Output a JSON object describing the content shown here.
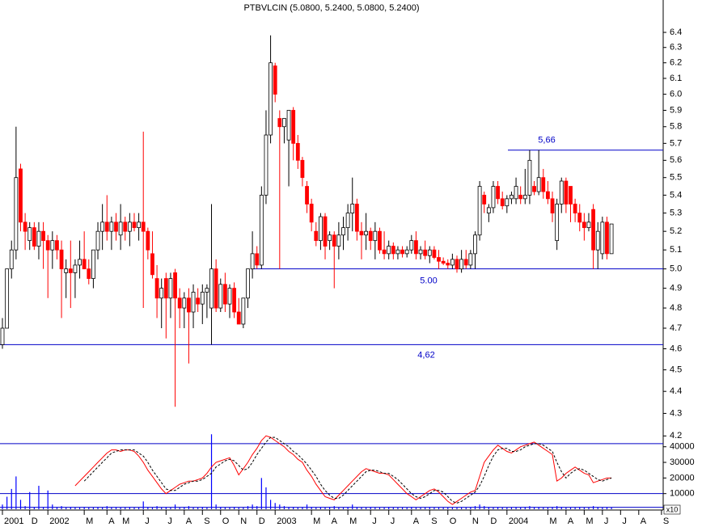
{
  "chart_data": [
    {
      "type": "candlestick",
      "title": "PTBVLCIN (5.0800, 5.2400, 5.0800, 5.2400)",
      "categories": [
        "2001",
        null,
        null,
        null,
        null,
        null,
        "D",
        null,
        null,
        null,
        "2002",
        null,
        null,
        null,
        null,
        null,
        null,
        null,
        "M",
        null,
        null,
        null,
        null,
        "A",
        null,
        null,
        "M",
        null,
        null,
        null,
        null,
        "J",
        null,
        null,
        null,
        null,
        "J",
        null,
        null,
        null,
        "A",
        null,
        null,
        null,
        "S",
        null,
        null,
        null,
        "O",
        null,
        null,
        null,
        "N",
        null,
        null,
        null,
        "D",
        null,
        null,
        null,
        "2003",
        null,
        null,
        null,
        null,
        null,
        null,
        null,
        "M",
        null,
        null,
        null,
        "A",
        null,
        null,
        null,
        "M",
        null,
        null,
        null,
        null,
        "J",
        null,
        null,
        null,
        "J",
        null,
        null,
        null,
        null,
        "A",
        null,
        null,
        null,
        "S",
        null,
        null,
        null,
        "O",
        null,
        null,
        null,
        null,
        "N",
        null,
        null,
        null,
        "D",
        null,
        null,
        null,
        "2004",
        null,
        null,
        null,
        null,
        null,
        null,
        null,
        null,
        "M",
        null,
        null,
        null,
        "A",
        null,
        null,
        null,
        "M",
        null,
        null,
        null,
        "J",
        null,
        null,
        null,
        "J",
        null,
        null,
        null,
        "A",
        null,
        null,
        null,
        null,
        "S"
      ],
      "open": [
        4.62,
        4.7,
        5.0,
        5.1,
        5.55,
        5.25,
        5.15,
        5.22,
        5.12,
        5.2,
        5.15,
        5.1,
        5.15,
        5.1,
        4.98,
        5.0,
        4.98,
        5.02,
        5.05,
        5.0,
        4.95,
        5.1,
        5.2,
        5.25,
        5.2,
        5.25,
        5.18,
        5.25,
        5.2,
        5.25,
        5.22,
        5.25,
        5.2,
        5.08,
        4.95,
        4.85,
        4.95,
        4.85,
        4.98,
        4.85,
        4.8,
        4.85,
        4.78,
        4.85,
        4.82,
        4.88,
        4.8,
        5.0,
        4.8,
        4.92,
        4.82,
        4.9,
        4.78,
        4.72,
        4.85,
        5.0,
        5.08,
        5.02,
        5.4,
        5.75,
        6.18,
        5.85,
        5.8,
        5.72,
        5.9,
        5.7,
        5.6,
        5.45,
        5.35,
        5.2,
        5.15,
        5.28,
        5.15,
        5.18,
        5.12,
        5.18,
        5.22,
        5.3,
        5.35,
        5.2,
        5.18,
        5.2,
        5.15,
        5.2,
        5.1,
        5.08,
        5.12,
        5.08,
        5.1,
        5.08,
        5.1,
        5.15,
        5.08,
        5.1,
        5.07,
        5.1,
        5.06,
        5.04,
        5.03,
        5.02,
        5.05,
        5.0,
        5.05,
        5.02,
        5.08,
        5.18,
        5.4,
        5.3,
        5.33,
        5.45,
        5.38,
        5.34,
        5.38,
        5.38,
        5.4,
        5.38,
        5.4,
        5.45,
        5.42,
        5.5,
        5.42,
        5.38,
        5.15,
        5.35,
        5.48,
        5.45,
        5.35,
        5.3,
        5.25,
        5.22,
        5.32,
        5.1,
        5.08,
        5.25,
        5.08,
        null,
        null,
        null,
        null,
        null,
        null,
        null,
        null,
        null,
        null,
        null
      ],
      "high": [
        4.75,
        5.0,
        5.15,
        5.8,
        5.58,
        5.3,
        5.25,
        5.25,
        5.25,
        5.25,
        5.18,
        5.2,
        5.18,
        5.15,
        5.05,
        5.15,
        5.05,
        5.15,
        5.2,
        5.05,
        5.1,
        5.25,
        5.35,
        5.4,
        5.28,
        5.3,
        5.35,
        5.28,
        5.3,
        5.3,
        5.3,
        5.77,
        5.22,
        5.2,
        5.02,
        4.95,
        4.98,
        4.98,
        5.0,
        4.9,
        4.88,
        4.9,
        4.92,
        4.9,
        4.92,
        4.92,
        5.35,
        5.05,
        4.95,
        4.98,
        4.92,
        4.93,
        4.85,
        4.85,
        5.0,
        5.2,
        5.12,
        5.45,
        5.9,
        6.38,
        6.2,
        5.9,
        5.85,
        5.9,
        5.92,
        5.75,
        5.62,
        5.48,
        5.38,
        5.25,
        5.3,
        5.3,
        5.2,
        5.2,
        5.25,
        5.28,
        5.35,
        5.5,
        5.38,
        5.25,
        5.3,
        5.22,
        5.25,
        5.22,
        5.2,
        5.15,
        5.14,
        5.12,
        5.12,
        5.12,
        5.18,
        5.2,
        5.12,
        5.15,
        5.12,
        5.12,
        5.1,
        5.06,
        5.05,
        5.08,
        5.07,
        5.1,
        5.1,
        5.1,
        5.2,
        5.48,
        5.42,
        5.35,
        5.48,
        5.48,
        5.42,
        5.4,
        5.42,
        5.5,
        5.45,
        5.55,
        5.66,
        5.48,
        5.66,
        5.55,
        5.48,
        5.42,
        5.38,
        5.5,
        5.5,
        5.45,
        5.38,
        5.35,
        5.3,
        5.3,
        5.35,
        5.25,
        5.28,
        5.28,
        5.24,
        null,
        null,
        null,
        null,
        null,
        null,
        null,
        null,
        null,
        null,
        null
      ],
      "low": [
        4.6,
        4.7,
        4.95,
        5.05,
        5.2,
        5.1,
        5.1,
        5.1,
        5.05,
        5.0,
        4.85,
        5.0,
        5.05,
        4.75,
        4.85,
        4.8,
        4.85,
        4.95,
        5.0,
        4.92,
        4.9,
        5.05,
        5.1,
        5.15,
        5.1,
        5.15,
        5.1,
        5.15,
        5.12,
        5.2,
        5.15,
        4.8,
        5.05,
        4.95,
        4.75,
        4.7,
        4.65,
        4.75,
        4.33,
        4.7,
        4.7,
        4.53,
        4.7,
        4.78,
        4.72,
        4.75,
        4.62,
        4.78,
        4.78,
        4.78,
        4.75,
        4.75,
        4.72,
        4.7,
        4.8,
        4.95,
        5.0,
        5.0,
        5.35,
        5.7,
        5.95,
        5.0,
        5.7,
        5.45,
        5.6,
        5.55,
        5.45,
        5.3,
        5.2,
        5.12,
        5.1,
        5.05,
        5.1,
        4.9,
        5.05,
        5.1,
        5.15,
        5.2,
        5.15,
        5.05,
        5.1,
        5.1,
        5.05,
        5.08,
        5.05,
        5.05,
        5.05,
        5.05,
        5.06,
        5.06,
        5.08,
        5.05,
        5.05,
        5.05,
        5.03,
        5.05,
        5.0,
        5.02,
        5.0,
        5.0,
        4.98,
        4.98,
        5.0,
        5.0,
        5.0,
        5.15,
        5.3,
        5.25,
        5.3,
        5.35,
        5.32,
        5.3,
        5.35,
        5.35,
        5.35,
        5.35,
        5.35,
        5.4,
        5.4,
        5.38,
        5.35,
        5.25,
        5.1,
        5.3,
        5.3,
        5.25,
        5.25,
        5.2,
        5.15,
        5.2,
        5.0,
        5.0,
        5.05,
        5.05,
        5.08,
        null,
        null,
        null,
        null,
        null,
        null,
        null,
        null,
        null,
        null,
        null
      ],
      "close": [
        4.7,
        5.0,
        5.1,
        5.5,
        5.25,
        5.2,
        5.22,
        5.12,
        5.2,
        5.15,
        5.1,
        5.15,
        5.1,
        5.0,
        5.0,
        4.98,
        5.02,
        5.05,
        5.0,
        4.95,
        5.1,
        5.2,
        5.25,
        5.2,
        5.25,
        5.2,
        5.25,
        5.2,
        5.25,
        5.22,
        5.25,
        5.2,
        5.1,
        4.97,
        4.85,
        4.9,
        4.85,
        4.95,
        4.85,
        4.8,
        4.85,
        4.78,
        4.88,
        4.82,
        4.88,
        4.9,
        5.0,
        4.8,
        4.92,
        4.82,
        4.9,
        4.78,
        4.72,
        4.85,
        5.0,
        5.08,
        5.02,
        5.4,
        5.75,
        6.2,
        6.0,
        5.8,
        5.85,
        5.9,
        5.7,
        5.6,
        5.5,
        5.35,
        5.25,
        5.15,
        5.28,
        5.12,
        5.18,
        5.12,
        5.18,
        5.22,
        5.3,
        5.35,
        5.2,
        5.18,
        5.2,
        5.15,
        5.2,
        5.1,
        5.08,
        5.12,
        5.08,
        5.1,
        5.08,
        5.1,
        5.15,
        5.08,
        5.1,
        5.07,
        5.1,
        5.06,
        5.04,
        5.03,
        5.02,
        5.05,
        5.0,
        5.05,
        5.02,
        5.08,
        5.18,
        5.45,
        5.35,
        5.33,
        5.45,
        5.38,
        5.34,
        5.38,
        5.4,
        5.45,
        5.38,
        5.4,
        5.6,
        5.42,
        5.5,
        5.42,
        5.38,
        5.3,
        5.35,
        5.48,
        5.35,
        5.35,
        5.3,
        5.25,
        5.22,
        5.25,
        5.1,
        5.2,
        5.25,
        5.08,
        5.24,
        null,
        null,
        null,
        null,
        null,
        null,
        null,
        null,
        null,
        null,
        null
      ],
      "up_color": "#ffffff",
      "down_color": "#ff0000",
      "outline_color": "#000000",
      "log_scale": true,
      "ylim": [
        4.18,
        6.62
      ],
      "yticks": [
        4.2,
        4.3,
        4.4,
        4.5,
        4.6,
        4.7,
        4.8,
        4.9,
        {
          "value": 5,
          "label": "5.0"
        },
        5.1,
        5.2,
        5.3,
        5.4,
        5.5,
        5.6,
        5.7,
        5.8,
        5.9,
        {
          "value": 6,
          "label": "6.0"
        },
        6.1,
        6.2,
        6.3,
        6.4
      ],
      "hline_color": "#0000c8",
      "hlines": [
        {
          "value": 5.66,
          "label": "5,66"
        },
        {
          "value": 5.0,
          "label": "5.00"
        },
        {
          "value": 4.62,
          "label": "4,62"
        }
      ]
    },
    {
      "type": "combo",
      "ylim": [
        0,
        44000
      ],
      "yticks": [
        10000,
        20000,
        30000,
        40000
      ],
      "axis_note": "x10",
      "hline_color": "#0000c8",
      "hlines": [
        42000,
        10000,
        1200
      ],
      "series": [
        {
          "style": "bar",
          "color": "#0000ff",
          "values": [
            3000,
            8000,
            13000,
            21000,
            6000,
            2000,
            11000,
            1500,
            15000,
            1500,
            12000,
            3000,
            1500,
            2000,
            1000,
            1500,
            1000,
            1000,
            1500,
            1000,
            1000,
            1500,
            1000,
            2000,
            1000,
            1500,
            1000,
            1000,
            1500,
            1000,
            1000,
            5000,
            1500,
            1000,
            2000,
            1000,
            1500,
            1000,
            3000,
            1000,
            1500,
            2000,
            1000,
            1000,
            1500,
            1000,
            48000,
            3000,
            1500,
            1000,
            1000,
            1500,
            1000,
            1000,
            2000,
            3000,
            2000,
            20000,
            14000,
            6000,
            4000,
            3000,
            2000,
            1500,
            1500,
            1000,
            1500,
            3000,
            1500,
            1000,
            1500,
            1000,
            1500,
            2000,
            1000,
            1000,
            1500,
            3000,
            1500,
            1000,
            1000,
            1500,
            1000,
            1000,
            1000,
            1500,
            1000,
            1000,
            1000,
            1000,
            1500,
            1000,
            1000,
            1000,
            1500,
            1000,
            1000,
            1000,
            1000,
            1000,
            1000,
            1000,
            1000,
            1500,
            2000,
            3000,
            2000,
            1500,
            1000,
            1500,
            1000,
            1000,
            1000,
            1500,
            1000,
            1500,
            2000,
            1500,
            1500,
            1000,
            1000,
            1500,
            2000,
            1500,
            1000,
            1000,
            1000,
            1500,
            1000,
            1000,
            2000,
            1500,
            1000,
            1500,
            1000,
            null,
            null,
            null,
            null,
            null,
            null,
            null,
            null,
            null,
            null,
            null
          ]
        },
        {
          "style": "line",
          "color": "#ff0000",
          "values": [
            null,
            null,
            null,
            null,
            null,
            null,
            null,
            null,
            null,
            null,
            null,
            null,
            null,
            null,
            null,
            null,
            15000,
            18000,
            21000,
            24000,
            27000,
            30000,
            33000,
            36000,
            38000,
            38000,
            37000,
            38000,
            38000,
            37000,
            34000,
            30000,
            25000,
            21000,
            17000,
            13000,
            10000,
            12000,
            14000,
            16000,
            17000,
            18000,
            18000,
            19000,
            20000,
            23000,
            27000,
            30000,
            31000,
            32000,
            33000,
            28000,
            22000,
            26000,
            30000,
            35000,
            39000,
            44000,
            47000,
            46000,
            44000,
            42000,
            40000,
            37000,
            35000,
            32000,
            30000,
            25000,
            21000,
            16000,
            12000,
            8000,
            7000,
            6000,
            9000,
            12000,
            15000,
            18000,
            21000,
            24000,
            26000,
            25000,
            24000,
            23000,
            23000,
            22000,
            19000,
            16000,
            13000,
            10000,
            8000,
            6000,
            8000,
            10000,
            12000,
            13000,
            11000,
            8000,
            5000,
            3000,
            5000,
            7000,
            9000,
            11000,
            12000,
            21000,
            30000,
            34000,
            38000,
            41000,
            39000,
            37000,
            36000,
            38000,
            40000,
            41000,
            42000,
            43000,
            41000,
            39000,
            37000,
            35000,
            18000,
            20000,
            23000,
            25000,
            27000,
            25000,
            23000,
            22000,
            17000,
            18000,
            19000,
            20000,
            20000,
            null,
            null,
            null,
            null,
            null,
            null,
            null,
            null,
            null,
            null,
            null
          ]
        },
        {
          "style": "line",
          "dash": true,
          "color": "#000000",
          "values": [
            null,
            null,
            null,
            null,
            null,
            null,
            null,
            null,
            null,
            null,
            null,
            null,
            null,
            null,
            null,
            null,
            null,
            null,
            18000,
            21000,
            24000,
            27000,
            30000,
            33000,
            36000,
            37000,
            38000,
            38000,
            38000,
            38000,
            36000,
            34000,
            30000,
            25000,
            21000,
            17000,
            13000,
            12000,
            12000,
            14000,
            16000,
            17000,
            18000,
            18000,
            19000,
            21000,
            23000,
            27000,
            29000,
            31000,
            32000,
            31000,
            28000,
            25000,
            26000,
            30000,
            35000,
            39000,
            43000,
            46000,
            46000,
            44000,
            42000,
            40000,
            37000,
            35000,
            32000,
            29000,
            25000,
            21000,
            16000,
            12000,
            9000,
            7000,
            7000,
            9000,
            12000,
            15000,
            18000,
            21000,
            24000,
            25000,
            25000,
            24000,
            23000,
            23000,
            21000,
            19000,
            16000,
            13000,
            10000,
            8000,
            7000,
            8000,
            10000,
            12000,
            12000,
            11000,
            8000,
            5000,
            4000,
            5000,
            7000,
            9000,
            11000,
            15000,
            21000,
            28000,
            34000,
            38000,
            39000,
            39000,
            37000,
            37000,
            38000,
            40000,
            41000,
            42000,
            42000,
            41000,
            39000,
            37000,
            30000,
            24000,
            20000,
            23000,
            25000,
            26000,
            25000,
            23000,
            21000,
            19000,
            18000,
            19000,
            20000,
            null,
            null,
            null,
            null,
            null,
            null,
            null,
            null,
            null,
            null,
            null
          ]
        }
      ]
    }
  ]
}
